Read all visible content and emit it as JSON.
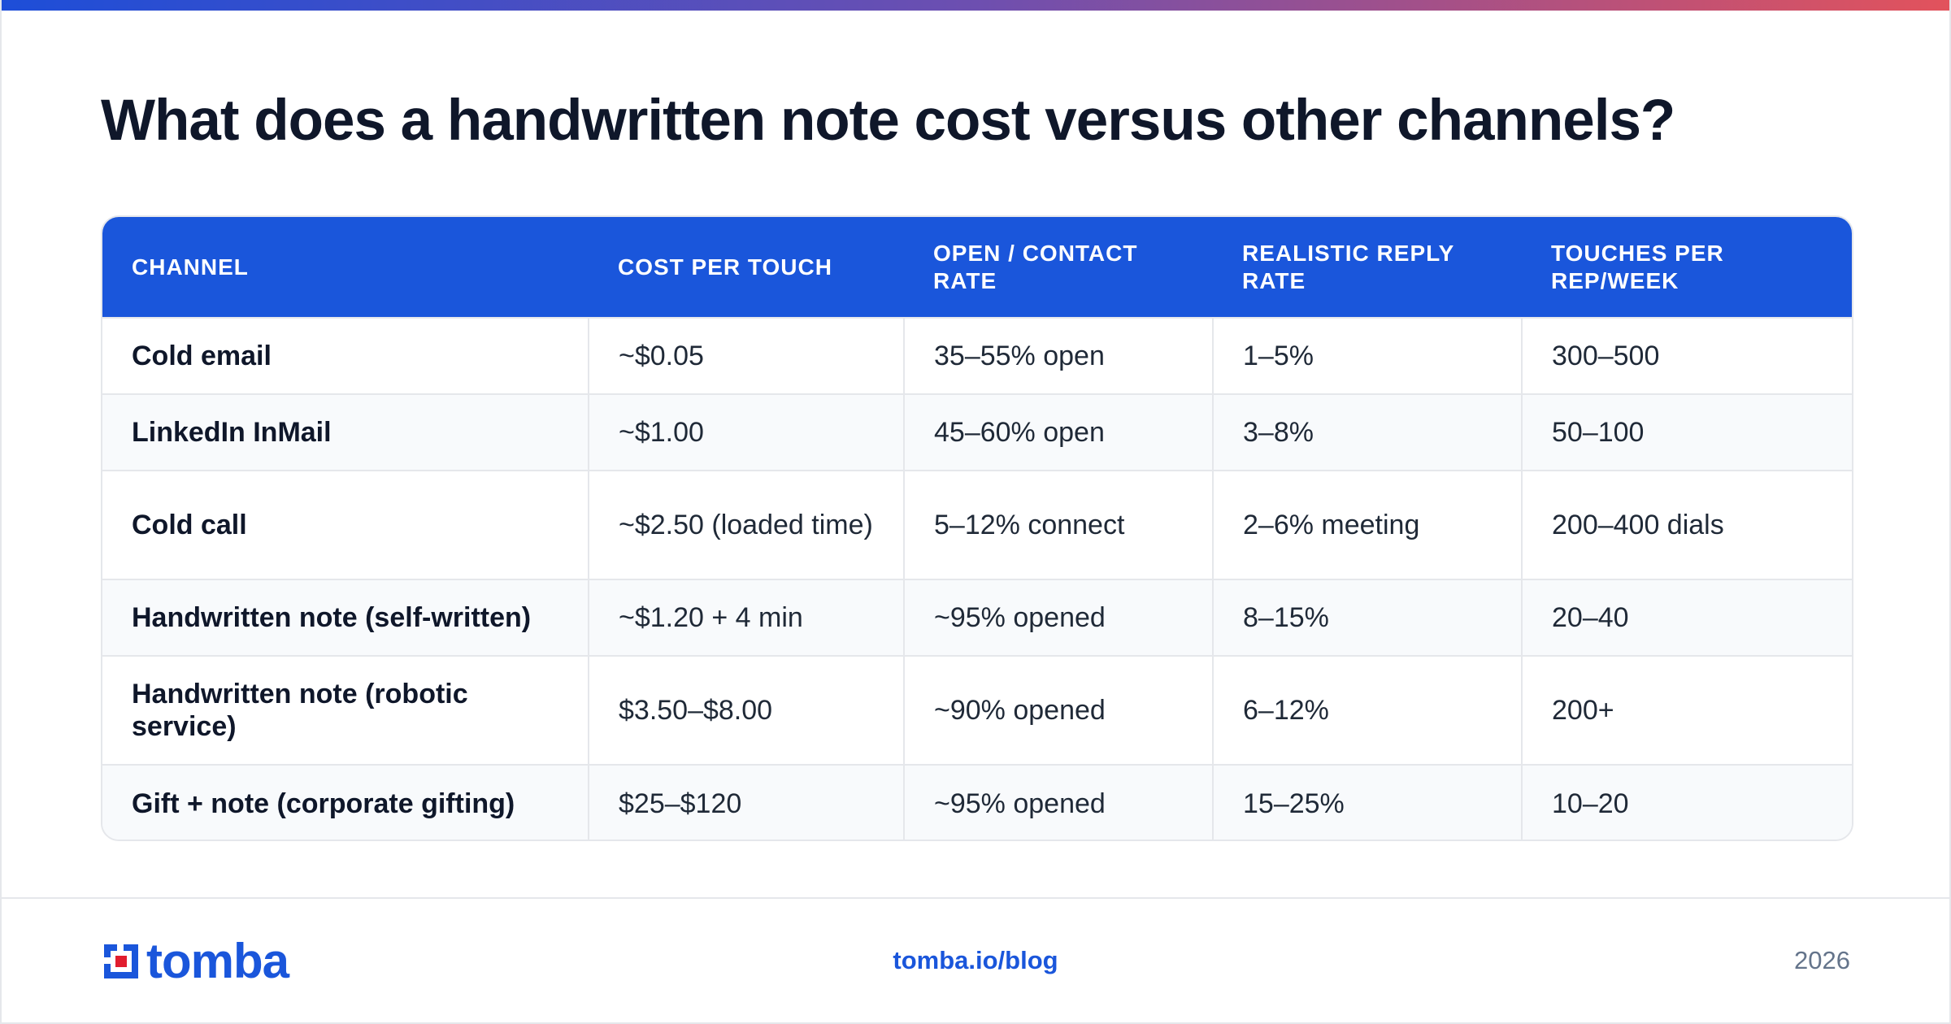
{
  "title": "What does a handwritten note cost versus other channels?",
  "table": {
    "headers": [
      "CHANNEL",
      "COST PER TOUCH",
      "OPEN / CONTACT RATE",
      "REALISTIC REPLY RATE",
      "TOUCHES PER REP/WEEK"
    ],
    "rows": [
      [
        "Cold email",
        "~$0.05",
        "35–55% open",
        "1–5%",
        "300–500"
      ],
      [
        "LinkedIn InMail",
        "~$1.00",
        "45–60% open",
        "3–8%",
        "50–100"
      ],
      [
        "Cold call",
        "~$2.50 (loaded time)",
        "5–12% connect",
        "2–6% meeting",
        "200–400 dials"
      ],
      [
        "Handwritten note (self-written)",
        "~$1.20 + 4 min",
        "~95% opened",
        "8–15%",
        "20–40"
      ],
      [
        "Handwritten note (robotic service)",
        "$3.50–$8.00",
        "~90% opened",
        "6–12%",
        "200+"
      ],
      [
        "Gift + note (corporate gifting)",
        "$25–$120",
        "~95% opened",
        "15–25%",
        "10–20"
      ]
    ]
  },
  "footer": {
    "logo_text": "tomba",
    "logo_icon": "tomba-logo-icon",
    "link": "tomba.io/blog",
    "year": "2026"
  },
  "colors": {
    "accent": "#1a56db",
    "gradient_start": "#1d4ed8",
    "gradient_end": "#e2525c",
    "logo_red": "#e11d2e"
  }
}
